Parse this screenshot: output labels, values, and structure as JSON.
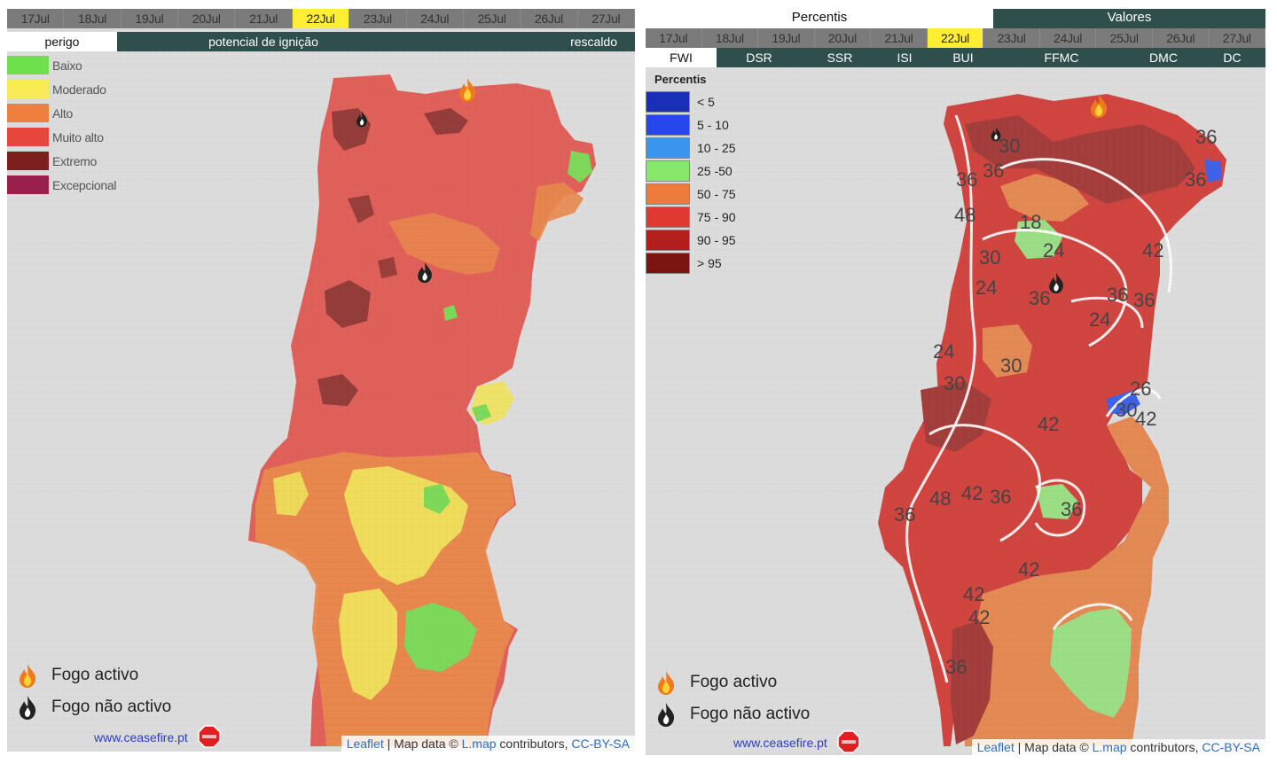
{
  "left_panel": {
    "dates": [
      "17Jul",
      "18Jul",
      "19Jul",
      "20Jul",
      "21Jul",
      "22Jul",
      "23Jul",
      "24Jul",
      "25Jul",
      "26Jul",
      "27Jul"
    ],
    "active_date_index": 5,
    "modes": [
      "perigo",
      "potencial de ignição",
      "rescaldo"
    ],
    "active_mode_index": 0,
    "legend": [
      {
        "label": "Baixo",
        "color": "#6ee04c"
      },
      {
        "label": "Moderado",
        "color": "#f7ea52"
      },
      {
        "label": "Alto",
        "color": "#ee7f3c"
      },
      {
        "label": "Muito alto",
        "color": "#e8453d"
      },
      {
        "label": "Extremo",
        "color": "#7d1f1c"
      },
      {
        "label": "Excepcional",
        "color": "#99204a"
      }
    ],
    "fire_legend": {
      "active": "Fogo activo",
      "inactive": "Fogo não activo"
    },
    "site_link": "www.ceasefire.pt",
    "attribution": {
      "leaflet": "Leaflet",
      "middle": " | Map data © ",
      "lmap": "L.map",
      "rest": " contributors, ",
      "license": "CC-BY-SA"
    }
  },
  "right_panel": {
    "header_percentis": "Percentis",
    "header_valores": "Valores",
    "dates": [
      "17Jul",
      "18Jul",
      "19Jul",
      "20Jul",
      "21Jul",
      "22Jul",
      "23Jul",
      "24Jul",
      "25Jul",
      "26Jul",
      "27Jul"
    ],
    "active_date_index": 5,
    "indices": [
      "FWI",
      "DSR",
      "SSR",
      "ISI",
      "BUI",
      "FFMC",
      "DMC",
      "DC"
    ],
    "active_index": 0,
    "legend_title": "Percentis",
    "legend": [
      {
        "label": "< 5",
        "color": "#1a2fb8"
      },
      {
        "label": "5 - 10",
        "color": "#2647ee"
      },
      {
        "label": "10 - 25",
        "color": "#3a95ee"
      },
      {
        "label": "25 -50",
        "color": "#86e86b"
      },
      {
        "label": "50 - 75",
        "color": "#ee7a3b"
      },
      {
        "label": "75 - 90",
        "color": "#e0392f"
      },
      {
        "label": "90 - 95",
        "color": "#b21f1d"
      },
      {
        "label": "> 95",
        "color": "#7a1511"
      }
    ],
    "contour_labels": [
      "30",
      "36",
      "36",
      "48",
      "18",
      "24",
      "42",
      "36",
      "30",
      "24",
      "36",
      "24",
      "36",
      "36",
      "30",
      "30",
      "24",
      "42",
      "26",
      "30",
      "42",
      "48",
      "42",
      "36",
      "36",
      "36",
      "42",
      "42",
      "42",
      "36",
      "36"
    ],
    "fire_legend": {
      "active": "Fogo activo",
      "inactive": "Fogo não activo"
    },
    "site_link": "www.ceasefire.pt",
    "attribution": {
      "leaflet": "Leaflet",
      "middle": " | Map data © ",
      "lmap": "L.map",
      "rest": " contributors, ",
      "license": "CC-BY-SA"
    }
  },
  "colors": {
    "ocean": "#dcdcdc",
    "muito_alto": "#e0605a",
    "extremo": "#8c3a36",
    "alto": "#e8894e",
    "moderado": "#efe25c",
    "baixo": "#7ed85a",
    "fwi_red": "#d14540",
    "fwi_dark": "#a33e3c",
    "fwi_orange": "#e38a55",
    "fwi_green": "#9bde86",
    "fwi_blue": "#3f63e8",
    "tab_dark": "#2e4f4b",
    "date_grey": "#7b7b7b",
    "active_yellow": "#ffee33"
  }
}
